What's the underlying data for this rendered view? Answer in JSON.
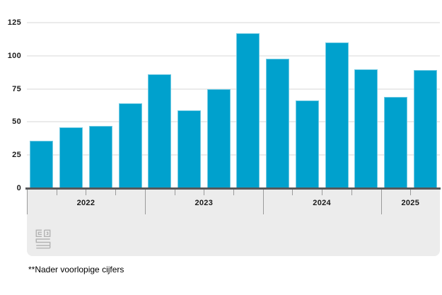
{
  "chart_data": {
    "type": "bar",
    "title": "",
    "categories": [
      "2022-Q1",
      "2022-Q2",
      "2022-Q3",
      "2022-Q4",
      "2023-Q1",
      "2023-Q2",
      "2023-Q3",
      "2023-Q4",
      "2024-Q1",
      "2024-Q2",
      "2024-Q3",
      "2024-Q4",
      "2025-Q1",
      "2025-Q2"
    ],
    "values": [
      36,
      46,
      47,
      64,
      86,
      59,
      75,
      117,
      98,
      66,
      110,
      90,
      69,
      89
    ],
    "x_axis": {
      "year_labels": [
        "2022",
        "2023",
        "2024",
        "2025"
      ],
      "quarters_per_year": [
        4,
        4,
        4,
        2
      ]
    },
    "y_axis": {
      "ticks": [
        0,
        25,
        50,
        75,
        100,
        125
      ],
      "min": 0,
      "max": 125
    },
    "grid": "horizontal",
    "legend": "none",
    "bar_color": "#00a1cd"
  },
  "footnote": "**Nader voorlopige cijfers",
  "logo": "cbs-logo",
  "colors": {
    "bar": "#00a1cd",
    "gridline": "#ebebeb",
    "axis_line": "#58585a",
    "footer_background": "#ececec",
    "tick": "#9a9a9a",
    "label_text": "#1a1a1a",
    "logo_gray": "#b3b3b3"
  }
}
